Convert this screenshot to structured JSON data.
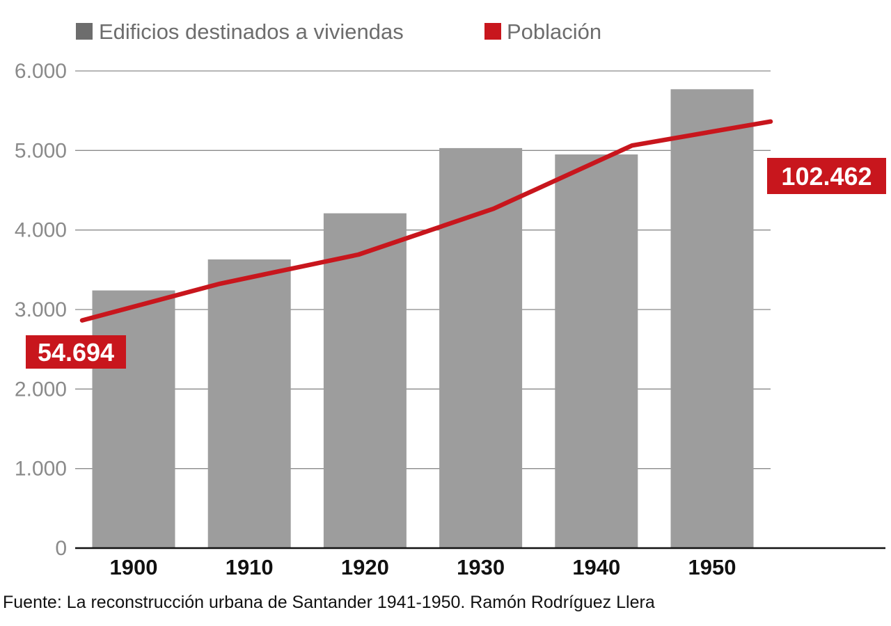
{
  "chart_data": {
    "type": "bar",
    "categories": [
      "1900",
      "1910",
      "1920",
      "1930",
      "1940",
      "1950"
    ],
    "series": [
      {
        "name": "Edificios destinados a viviendas",
        "type": "bar",
        "values": [
          3240,
          3630,
          4210,
          5030,
          4950,
          5770
        ]
      },
      {
        "name": "Población",
        "type": "line",
        "values": [
          54694,
          63500,
          70500,
          81500,
          96700,
          102462
        ]
      }
    ],
    "ylim": [
      0,
      6000
    ],
    "yticks": [
      "0",
      "1.000",
      "2.000",
      "3.000",
      "4.000",
      "5.000",
      "6.000"
    ],
    "ytick_values": [
      0,
      1000,
      2000,
      3000,
      4000,
      5000,
      6000
    ],
    "line_scale": {
      "value_per_bar_unit": 19.1
    },
    "annotations": [
      {
        "category": "1900",
        "series": "Población",
        "text": "54.694"
      },
      {
        "category": "1950",
        "series": "Población",
        "text": "102.462"
      }
    ],
    "legend_position": "top-left",
    "grid": true,
    "colors": {
      "bar": "#9d9d9d",
      "line": "#c8161d",
      "legend_bar": "#6d6d6d",
      "grid": "#8a8a8a"
    }
  },
  "source": "Fuente: La reconstrucción urbana de Santander 1941-1950. Ramón Rodríguez Llera"
}
